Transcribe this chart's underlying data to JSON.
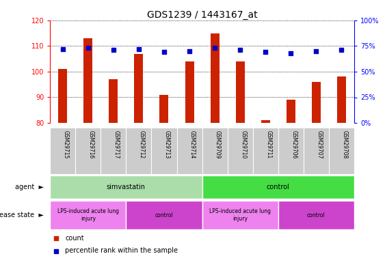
{
  "title": "GDS1239 / 1443167_at",
  "samples": [
    "GSM29715",
    "GSM29716",
    "GSM29717",
    "GSM29712",
    "GSM29713",
    "GSM29714",
    "GSM29709",
    "GSM29710",
    "GSM29711",
    "GSM29706",
    "GSM29707",
    "GSM29708"
  ],
  "bar_values": [
    101,
    113,
    97,
    107,
    91,
    104,
    115,
    104,
    81,
    89,
    96,
    98
  ],
  "percentile_values": [
    72,
    73,
    71,
    72,
    69,
    70,
    73,
    71,
    69,
    68,
    70,
    71
  ],
  "ylim_left": [
    80,
    120
  ],
  "ylim_right": [
    0,
    100
  ],
  "yticks_left": [
    80,
    90,
    100,
    110,
    120
  ],
  "yticks_right": [
    0,
    25,
    50,
    75,
    100
  ],
  "bar_color": "#cc2200",
  "dot_color": "#0000cc",
  "agent_groups": [
    {
      "label": "simvastatin",
      "start": 0,
      "end": 6,
      "color": "#aaddaa"
    },
    {
      "label": "control",
      "start": 6,
      "end": 12,
      "color": "#44dd44"
    }
  ],
  "disease_groups": [
    {
      "label": "LPS-induced acute lung\ninjury",
      "start": 0,
      "end": 3,
      "color": "#ee82ee"
    },
    {
      "label": "control",
      "start": 3,
      "end": 6,
      "color": "#cc44cc"
    },
    {
      "label": "LPS-induced acute lung\ninjury",
      "start": 6,
      "end": 9,
      "color": "#ee82ee"
    },
    {
      "label": "control",
      "start": 9,
      "end": 12,
      "color": "#cc44cc"
    }
  ],
  "agent_label": "agent",
  "disease_label": "disease state",
  "legend_count_label": "count",
  "legend_pct_label": "percentile rank within the sample",
  "sample_bg_color": "#cccccc",
  "bar_width": 0.35,
  "dot_size": 15,
  "left_axis_color": "red",
  "right_axis_color": "blue",
  "grid_linestyle": "dotted",
  "title_fontsize": 10,
  "axis_fontsize": 7,
  "label_fontsize": 7,
  "row_fontsize": 7,
  "legend_fontsize": 7
}
